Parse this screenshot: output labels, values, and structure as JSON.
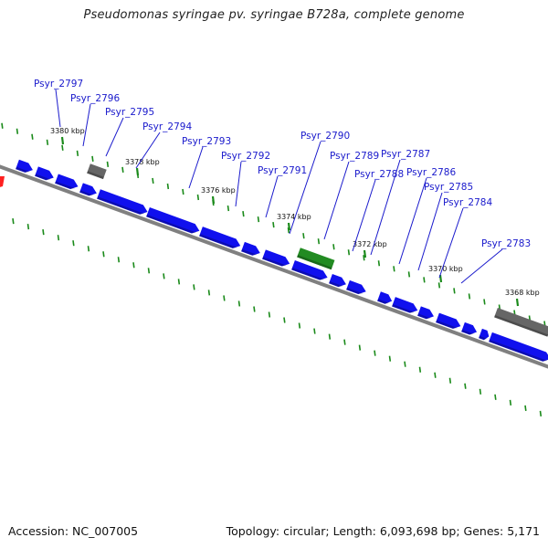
{
  "title": "Pseudomonas syringae pv. syringae B728a, complete genome",
  "footer": {
    "accession": "Accession: NC_007005",
    "summary": "Topology: circular; Length: 6,093,698 bp; Genes: 5,171"
  },
  "colors": {
    "cds": "#1010ee",
    "pseudogene": "#666666",
    "rna": "#228b22",
    "highlight": "#ff2020",
    "backbone": "#808080",
    "tick": "#1a8a1a",
    "label": "#1a1acc"
  },
  "tick_labels": [
    "3380 kbp",
    "3378 kbp",
    "3376 kbp",
    "3374 kbp",
    "3372 kbp",
    "3370 kbp",
    "3368 kbp"
  ],
  "gene_labels": [
    "Psyr_2797",
    "Psyr_2796",
    "Psyr_2795",
    "Psyr_2794",
    "Psyr_2793",
    "Psyr_2792",
    "Psyr_2791",
    "Psyr_2790",
    "Psyr_2789",
    "Psyr_2788",
    "Psyr_2787",
    "Psyr_2786",
    "Psyr_2785",
    "Psyr_2784",
    "Psyr_2783"
  ]
}
